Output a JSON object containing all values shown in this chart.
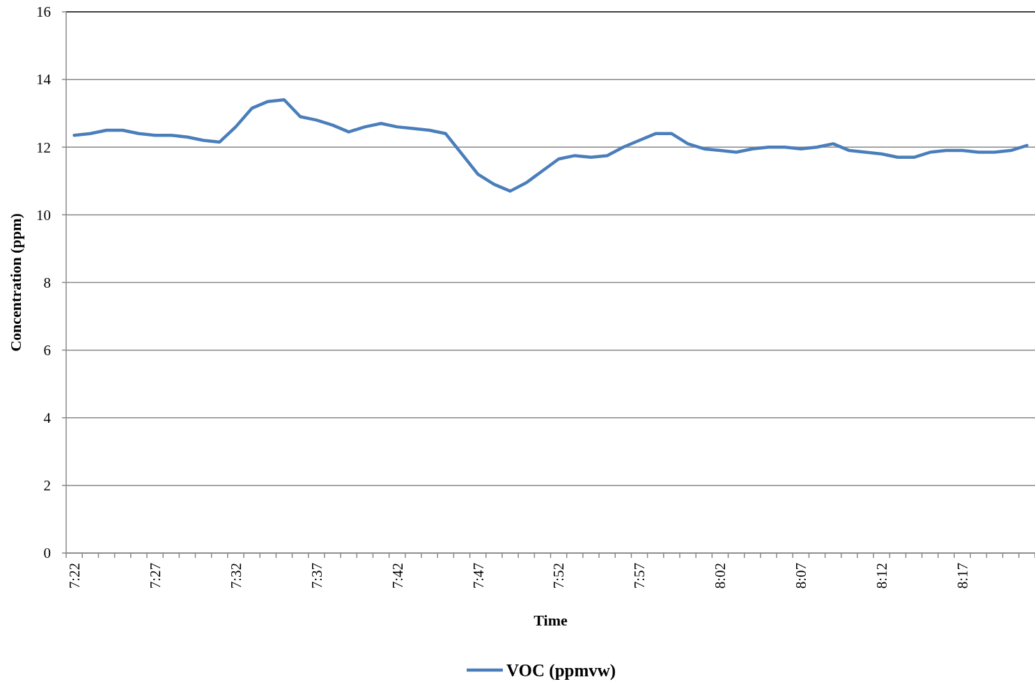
{
  "chart_data": {
    "type": "line",
    "xlabel": "Time",
    "ylabel": "Concentration (ppm)",
    "categories": [
      "7:22",
      null,
      null,
      null,
      null,
      "7:27",
      null,
      null,
      null,
      null,
      "7:32",
      null,
      null,
      null,
      null,
      "7:37",
      null,
      null,
      null,
      null,
      "7:42",
      null,
      null,
      null,
      null,
      "7:47",
      null,
      null,
      null,
      null,
      "7:52",
      null,
      null,
      null,
      null,
      "7:57",
      null,
      null,
      null,
      null,
      "8:02",
      null,
      null,
      null,
      null,
      "8:07",
      null,
      null,
      null,
      null,
      "8:12",
      null,
      null,
      null,
      null,
      "8:17",
      null,
      null,
      null,
      null
    ],
    "series": [
      {
        "name": "VOC (ppmvw)",
        "color": "#4a7ebb",
        "values": [
          12.35,
          12.4,
          12.5,
          12.5,
          12.4,
          12.35,
          12.35,
          12.3,
          12.2,
          12.15,
          12.6,
          13.15,
          13.35,
          13.4,
          12.9,
          12.8,
          12.65,
          12.45,
          12.6,
          12.7,
          12.6,
          12.55,
          12.5,
          12.4,
          11.8,
          11.2,
          10.9,
          10.7,
          10.95,
          11.3,
          11.65,
          11.75,
          11.7,
          11.75,
          12.0,
          12.2,
          12.4,
          12.4,
          12.1,
          11.95,
          11.9,
          11.85,
          11.95,
          12.0,
          12.0,
          11.95,
          12.0,
          12.1,
          11.9,
          11.85,
          11.8,
          11.7,
          11.7,
          11.85,
          11.9,
          11.9,
          11.85,
          11.85,
          11.9,
          12.05
        ]
      }
    ],
    "ylim": [
      0,
      16
    ],
    "yticks": [
      0,
      2,
      4,
      6,
      8,
      10,
      12,
      14,
      16
    ],
    "grid": "y",
    "legend": "bottom",
    "marker": "none",
    "line_style": "solid"
  }
}
